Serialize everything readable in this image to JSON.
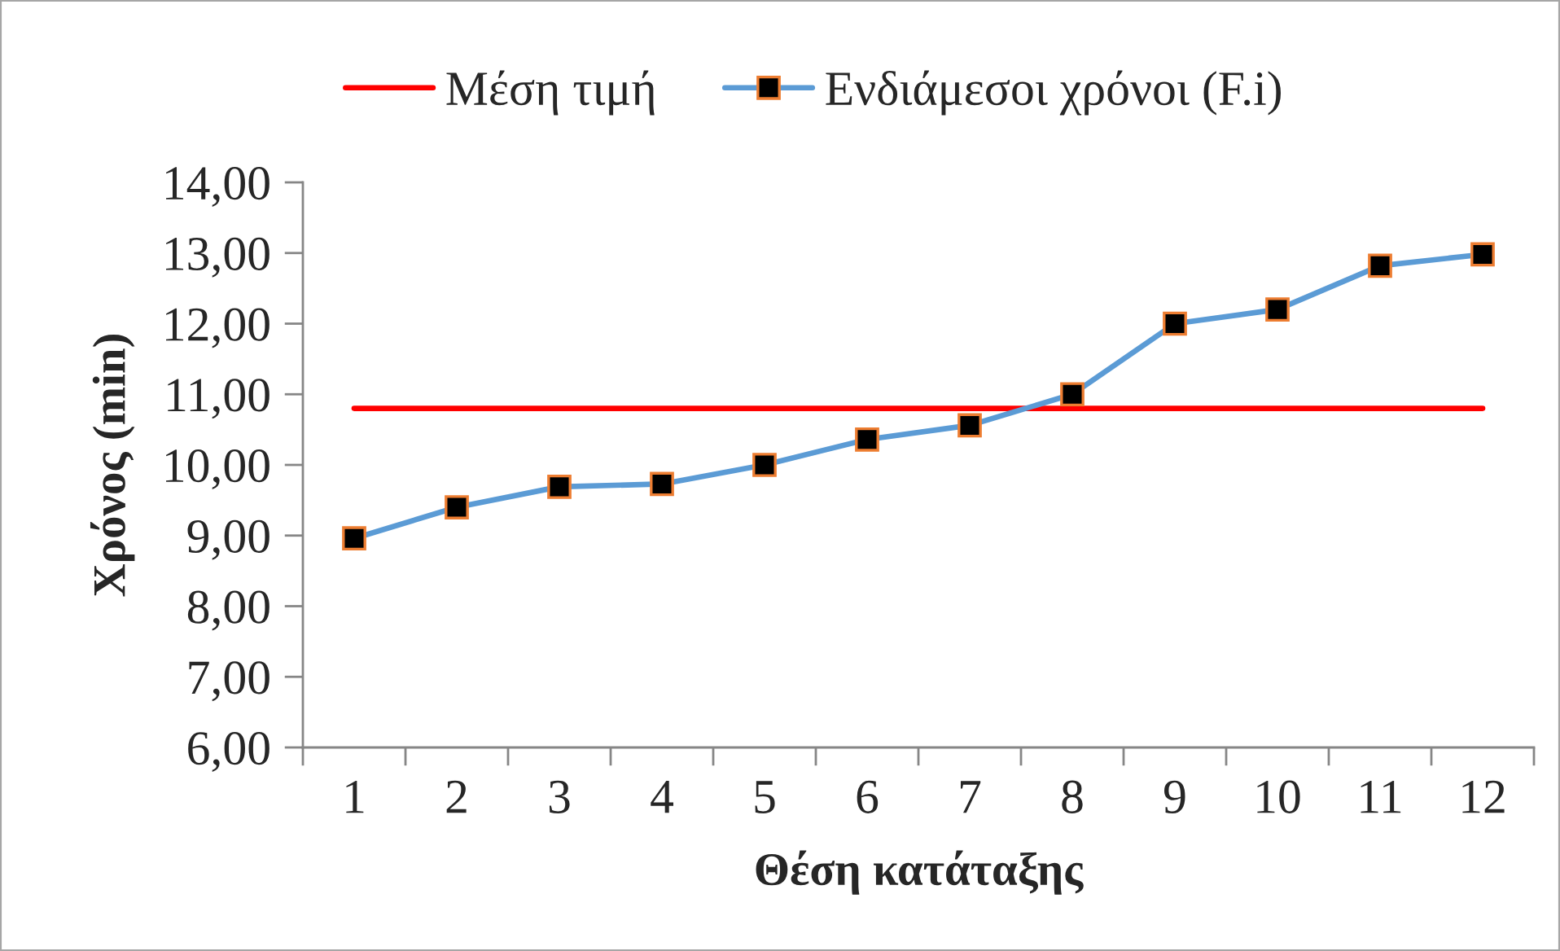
{
  "chart_data": {
    "type": "line",
    "xlabel": "Θέση κατάταξης",
    "ylabel": "Χρόνος (min)",
    "categories": [
      "1",
      "2",
      "3",
      "4",
      "5",
      "6",
      "7",
      "8",
      "9",
      "10",
      "11",
      "12"
    ],
    "series": [
      {
        "name": "Μέση τιμή",
        "color": "#ff0000",
        "marker": "none",
        "values": [
          10.8,
          10.8,
          10.8,
          10.8,
          10.8,
          10.8,
          10.8,
          10.8,
          10.8,
          10.8,
          10.8,
          10.8
        ]
      },
      {
        "name": "Ενδιάμεσοι χρόνοι (F.i)",
        "color": "#5b9bd5",
        "marker": "square",
        "values": [
          8.96,
          9.4,
          9.69,
          9.73,
          10.0,
          10.36,
          10.56,
          11.0,
          12.0,
          12.2,
          12.82,
          12.98
        ]
      }
    ],
    "ylim": [
      6,
      14
    ],
    "yticks": [
      {
        "value": 6,
        "label": "6,00"
      },
      {
        "value": 7,
        "label": "7,00"
      },
      {
        "value": 8,
        "label": "8,00"
      },
      {
        "value": 9,
        "label": "9,00"
      },
      {
        "value": 10,
        "label": "10,00"
      },
      {
        "value": 11,
        "label": "11,00"
      },
      {
        "value": 12,
        "label": "12,00"
      },
      {
        "value": 13,
        "label": "13,00"
      },
      {
        "value": 14,
        "label": "14,00"
      }
    ],
    "grid": false,
    "legend": "top",
    "line_style": "solid"
  }
}
